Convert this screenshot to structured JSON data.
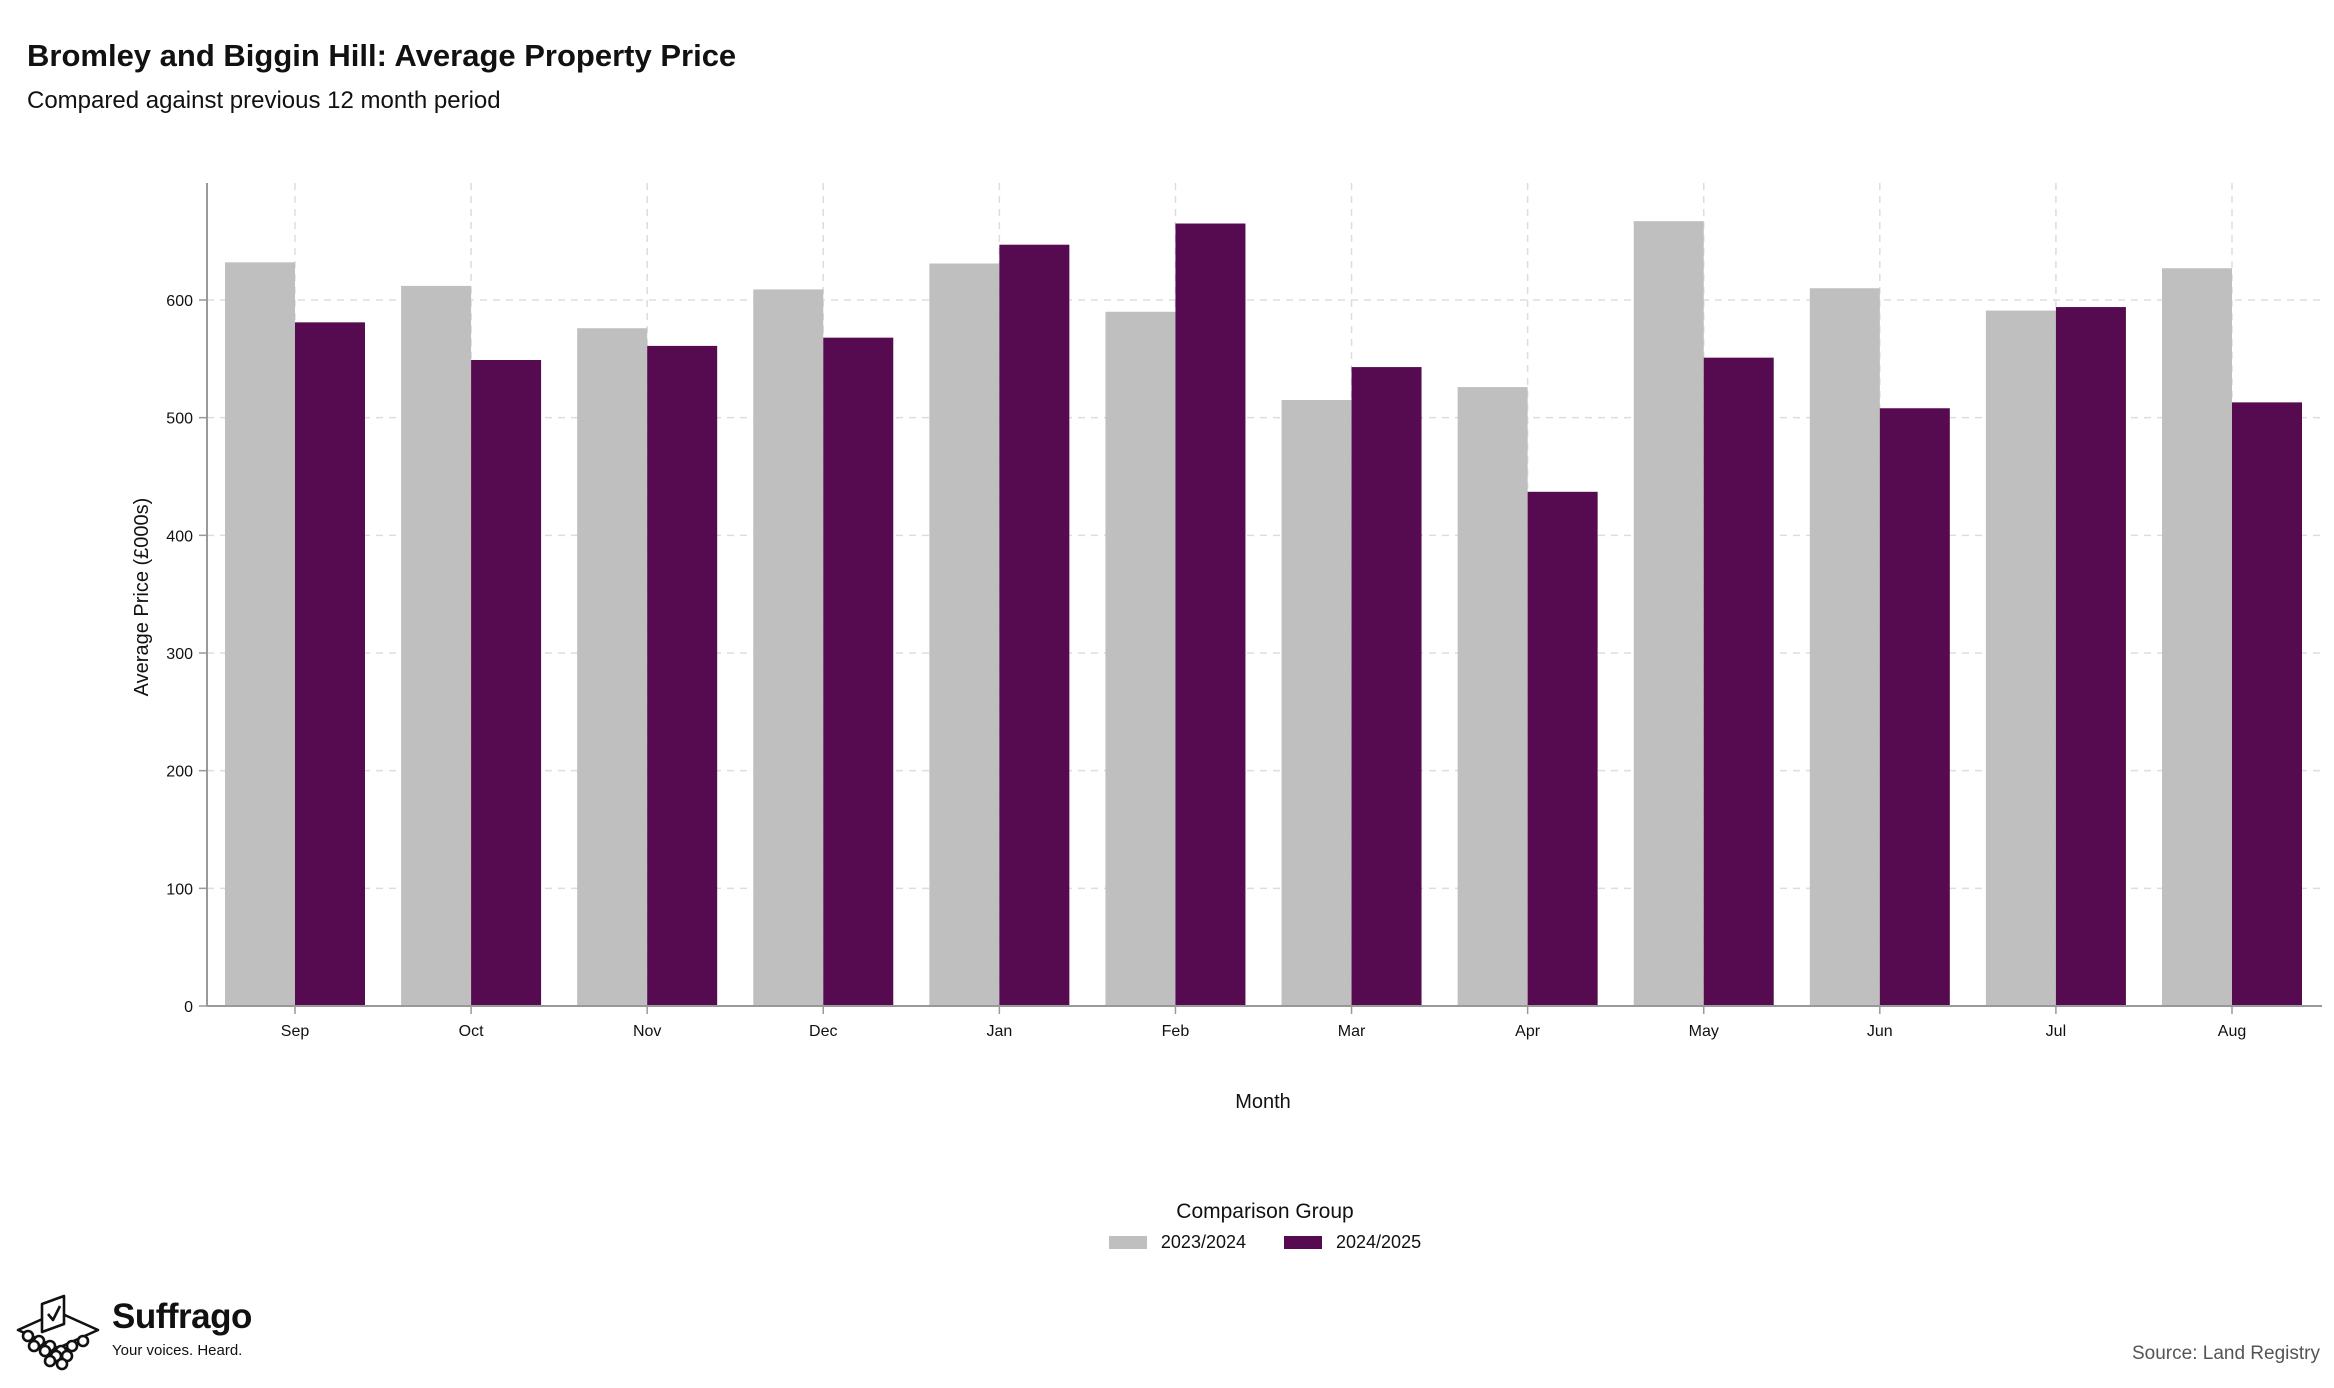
{
  "title": "Bromley and Biggin Hill: Average Property Price",
  "subtitle": "Compared against previous 12 month period",
  "source": "Source: Land Registry",
  "logo": {
    "name": "Suffrago",
    "tagline": "Your voices. Heard.",
    "icon": "ballot-box-icon"
  },
  "colors": {
    "series_2023_2024": "#bfbfbf",
    "series_2024_2025": "#560b50",
    "grid": "#dddddd",
    "axis": "#999999"
  },
  "chart_data": {
    "type": "bar",
    "title": "Bromley and Biggin Hill: Average Property Price",
    "subtitle": "Compared against previous 12 month period",
    "xlabel": "Month",
    "ylabel": "Average Price (£000s)",
    "ylim": [
      0,
      700
    ],
    "yticks": [
      0,
      100,
      200,
      300,
      400,
      500,
      600
    ],
    "grid": true,
    "legend_title": "Comparison Group",
    "legend_position": "bottom",
    "categories": [
      "Sep",
      "Oct",
      "Nov",
      "Dec",
      "Jan",
      "Feb",
      "Mar",
      "Apr",
      "May",
      "Jun",
      "Jul",
      "Aug"
    ],
    "series": [
      {
        "name": "2023/2024",
        "values": [
          632,
          612,
          576,
          609,
          631,
          590,
          515,
          526,
          667,
          610,
          591,
          627
        ]
      },
      {
        "name": "2024/2025",
        "values": [
          581,
          549,
          561,
          568,
          647,
          665,
          543,
          437,
          551,
          508,
          594,
          513
        ]
      }
    ]
  }
}
